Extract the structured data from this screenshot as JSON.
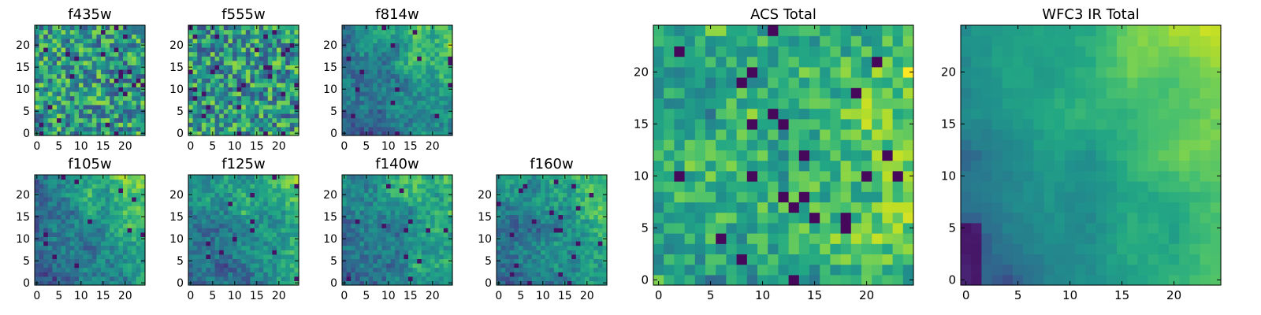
{
  "chart_data": [
    {
      "type": "heatmap",
      "title": "f435w",
      "grid_size": 25,
      "pattern": "uniform",
      "xticks": [
        "0",
        "5",
        "10",
        "15",
        "20"
      ],
      "yticks": [
        "0",
        "5",
        "10",
        "15",
        "20"
      ],
      "xlim": [
        0,
        24
      ],
      "ylim": [
        0,
        24
      ],
      "colormap": "viridis"
    },
    {
      "type": "heatmap",
      "title": "f555w",
      "grid_size": 25,
      "pattern": "uniform",
      "xticks": [
        "0",
        "5",
        "10",
        "15",
        "20"
      ],
      "yticks": [
        "0",
        "5",
        "10",
        "15",
        "20"
      ],
      "xlim": [
        0,
        24
      ],
      "ylim": [
        0,
        24
      ],
      "colormap": "viridis"
    },
    {
      "type": "heatmap",
      "title": "f814w",
      "grid_size": 25,
      "pattern": "gradient",
      "xticks": [
        "0",
        "5",
        "10",
        "15",
        "20"
      ],
      "yticks": [
        "0",
        "5",
        "10",
        "15",
        "20"
      ],
      "xlim": [
        0,
        24
      ],
      "ylim": [
        0,
        24
      ],
      "colormap": "viridis"
    },
    {
      "type": "heatmap",
      "title": "f105w",
      "grid_size": 25,
      "pattern": "gradient",
      "xticks": [
        "0",
        "5",
        "10",
        "15",
        "20"
      ],
      "yticks": [
        "0",
        "5",
        "10",
        "15",
        "20"
      ],
      "xlim": [
        0,
        24
      ],
      "ylim": [
        0,
        24
      ],
      "colormap": "viridis"
    },
    {
      "type": "heatmap",
      "title": "f125w",
      "grid_size": 25,
      "pattern": "gradient",
      "xticks": [
        "0",
        "5",
        "10",
        "15",
        "20"
      ],
      "yticks": [
        "0",
        "5",
        "10",
        "15",
        "20"
      ],
      "xlim": [
        0,
        24
      ],
      "ylim": [
        0,
        24
      ],
      "colormap": "viridis"
    },
    {
      "type": "heatmap",
      "title": "f140w",
      "grid_size": 25,
      "pattern": "gradient",
      "xticks": [
        "0",
        "5",
        "10",
        "15",
        "20"
      ],
      "yticks": [
        "0",
        "5",
        "10",
        "15",
        "20"
      ],
      "xlim": [
        0,
        24
      ],
      "ylim": [
        0,
        24
      ],
      "colormap": "viridis"
    },
    {
      "type": "heatmap",
      "title": "f160w",
      "grid_size": 25,
      "pattern": "gradient",
      "xticks": [
        "0",
        "5",
        "10",
        "15",
        "20"
      ],
      "yticks": [
        "0",
        "5",
        "10",
        "15",
        "20"
      ],
      "xlim": [
        0,
        24
      ],
      "ylim": [
        0,
        24
      ],
      "colormap": "viridis"
    },
    {
      "type": "heatmap",
      "title": "ACS Total",
      "grid_size": 25,
      "pattern": "mixed",
      "xticks": [
        "0",
        "5",
        "10",
        "15",
        "20"
      ],
      "yticks": [
        "0",
        "5",
        "10",
        "15",
        "20"
      ],
      "xlim": [
        0,
        24
      ],
      "ylim": [
        0,
        24
      ],
      "colormap": "viridis"
    },
    {
      "type": "heatmap",
      "title": "WFC3 IR Total",
      "grid_size": 25,
      "pattern": "smooth-gradient",
      "xticks": [
        "0",
        "5",
        "10",
        "15",
        "20"
      ],
      "yticks": [
        "0",
        "5",
        "10",
        "15",
        "20"
      ],
      "xlim": [
        0,
        24
      ],
      "ylim": [
        0,
        24
      ],
      "colormap": "viridis"
    }
  ]
}
